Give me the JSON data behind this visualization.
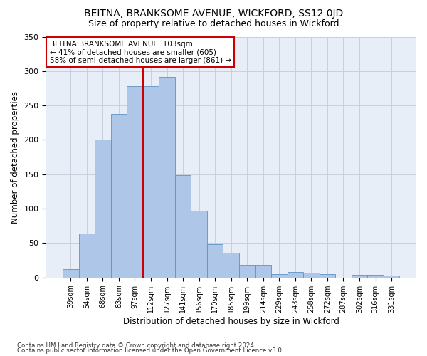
{
  "title": "BEITNA, BRANKSOME AVENUE, WICKFORD, SS12 0JD",
  "subtitle": "Size of property relative to detached houses in Wickford",
  "xlabel": "Distribution of detached houses by size in Wickford",
  "ylabel": "Number of detached properties",
  "categories": [
    "39sqm",
    "54sqm",
    "68sqm",
    "83sqm",
    "97sqm",
    "112sqm",
    "127sqm",
    "141sqm",
    "156sqm",
    "170sqm",
    "185sqm",
    "199sqm",
    "214sqm",
    "229sqm",
    "243sqm",
    "258sqm",
    "272sqm",
    "287sqm",
    "302sqm",
    "316sqm",
    "331sqm"
  ],
  "values": [
    12,
    64,
    200,
    238,
    278,
    278,
    292,
    149,
    97,
    48,
    36,
    18,
    18,
    5,
    8,
    7,
    5,
    0,
    4,
    4,
    3
  ],
  "bar_color": "#aec6e8",
  "bar_edge_color": "#5f93c4",
  "vline_x": 4.5,
  "vline_color": "#cc0000",
  "annotation_text": "BEITNA BRANKSOME AVENUE: 103sqm\n← 41% of detached houses are smaller (605)\n58% of semi-detached houses are larger (861) →",
  "annotation_box_color": "white",
  "annotation_box_edge": "#cc0000",
  "ylim": [
    0,
    350
  ],
  "yticks": [
    0,
    50,
    100,
    150,
    200,
    250,
    300,
    350
  ],
  "footer_line1": "Contains HM Land Registry data © Crown copyright and database right 2024.",
  "footer_line2": "Contains public sector information licensed under the Open Government Licence v3.0.",
  "plot_bg_color": "#e8eef8",
  "title_fontsize": 10,
  "subtitle_fontsize": 9,
  "label_fontsize": 8.5
}
